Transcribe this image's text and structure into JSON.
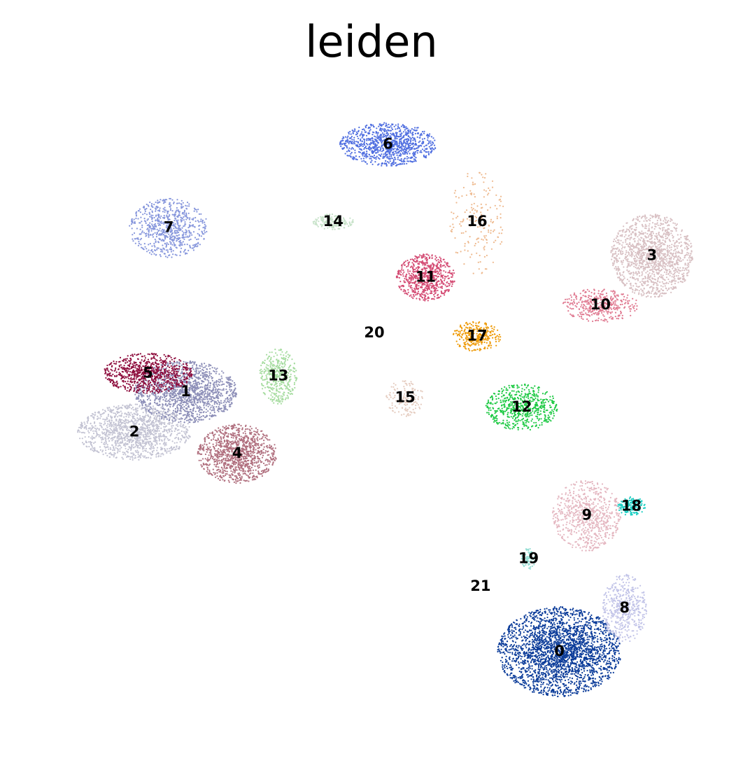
{
  "chart_data": {
    "type": "scatter",
    "title": "leiden",
    "xlabel": "",
    "ylabel": "",
    "axes_visible": false,
    "grid": false,
    "legend": "on data",
    "xlim": [
      -8,
      12
    ],
    "ylim": [
      -10,
      12
    ],
    "clusters": [
      {
        "label": "0",
        "color": "#0a3b99",
        "x": 7.4,
        "y": -6.4,
        "spread": [
          1.8,
          1.45
        ],
        "points": 2600
      },
      {
        "label": "1",
        "color": "#8d8fb8",
        "x": -3.5,
        "y": 2.0,
        "spread": [
          1.5,
          1.0
        ],
        "points": 1500
      },
      {
        "label": "2",
        "color": "#c3c3d3",
        "x": -5.0,
        "y": 0.7,
        "spread": [
          1.65,
          0.9
        ],
        "points": 1300
      },
      {
        "label": "3",
        "color": "#d8c0c3",
        "x": 10.1,
        "y": 6.4,
        "spread": [
          1.2,
          1.35
        ],
        "points": 1400
      },
      {
        "label": "4",
        "color": "#b06f7e",
        "x": -2.0,
        "y": 0.0,
        "spread": [
          1.15,
          0.95
        ],
        "points": 1100
      },
      {
        "label": "5",
        "color": "#8e0d3d",
        "x": -4.6,
        "y": 2.6,
        "spread": [
          1.3,
          0.65
        ],
        "points": 800
      },
      {
        "label": "6",
        "color": "#4f6ee0",
        "x": 2.4,
        "y": 10.0,
        "spread": [
          1.4,
          0.7
        ],
        "points": 1000
      },
      {
        "label": "7",
        "color": "#8696dc",
        "x": -4.0,
        "y": 7.3,
        "spread": [
          1.15,
          0.95
        ],
        "points": 700
      },
      {
        "label": "8",
        "color": "#c2c4e8",
        "x": 9.3,
        "y": -5.0,
        "spread": [
          0.65,
          1.1
        ],
        "points": 500
      },
      {
        "label": "9",
        "color": "#e4b6c0",
        "x": 8.2,
        "y": -2.0,
        "spread": [
          1.0,
          1.15
        ],
        "points": 700
      },
      {
        "label": "10",
        "color": "#e07a91",
        "x": 8.6,
        "y": 4.8,
        "spread": [
          1.1,
          0.55
        ],
        "points": 400
      },
      {
        "label": "11",
        "color": "#d44c74",
        "x": 3.5,
        "y": 5.7,
        "spread": [
          0.85,
          0.75
        ],
        "points": 700
      },
      {
        "label": "12",
        "color": "#1dc943",
        "x": 6.3,
        "y": 1.5,
        "spread": [
          1.05,
          0.75
        ],
        "points": 600
      },
      {
        "label": "13",
        "color": "#a6dca0",
        "x": -0.8,
        "y": 2.5,
        "spread": [
          0.55,
          0.9
        ],
        "points": 400
      },
      {
        "label": "14",
        "color": "#c6e2c8",
        "x": 0.8,
        "y": 7.5,
        "spread": [
          0.6,
          0.25
        ],
        "points": 150
      },
      {
        "label": "15",
        "color": "#e5ccc0",
        "x": 2.9,
        "y": 1.8,
        "spread": [
          0.55,
          0.6
        ],
        "points": 150
      },
      {
        "label": "16",
        "color": "#eeb98e",
        "x": 5.0,
        "y": 7.5,
        "spread": [
          0.8,
          1.7
        ],
        "points": 180
      },
      {
        "label": "17",
        "color": "#ee9a07",
        "x": 5.0,
        "y": 3.8,
        "spread": [
          0.7,
          0.5
        ],
        "points": 300
      },
      {
        "label": "18",
        "color": "#18cec2",
        "x": 9.5,
        "y": -1.7,
        "spread": [
          0.4,
          0.3
        ],
        "points": 160
      },
      {
        "label": "19",
        "color": "#95ded4",
        "x": 6.5,
        "y": -3.4,
        "spread": [
          0.2,
          0.35
        ],
        "points": 80
      },
      {
        "label": "20",
        "color": "#777777",
        "x": 2.0,
        "y": 3.9,
        "spread": [
          0.05,
          0.05
        ],
        "points": 0
      },
      {
        "label": "21",
        "color": "#8a3b4c",
        "x": 5.1,
        "y": -4.3,
        "spread": [
          0.05,
          0.05
        ],
        "points": 0
      }
    ]
  }
}
